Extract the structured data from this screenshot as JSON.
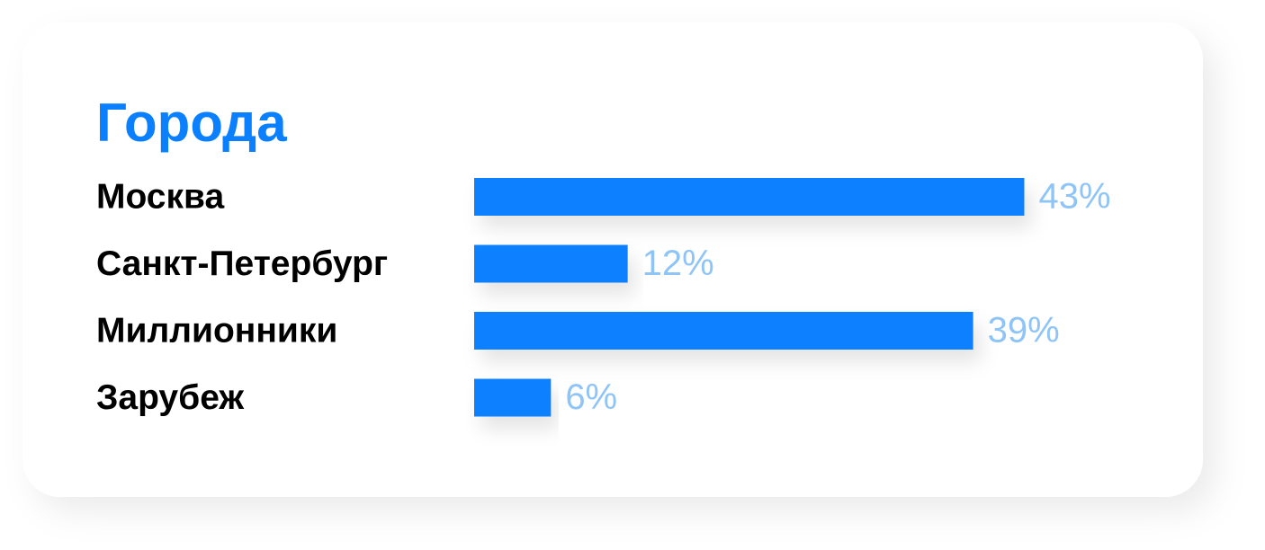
{
  "chart_data": {
    "type": "bar",
    "orientation": "horizontal",
    "title": "Города",
    "categories": [
      "Москва",
      "Санкт-Петербург",
      "Миллионники",
      "Зарубеж"
    ],
    "values": [
      43,
      12,
      39,
      6
    ],
    "value_labels": [
      "43%",
      "12%",
      "39%",
      "6%"
    ],
    "color": "#0a80ff"
  }
}
